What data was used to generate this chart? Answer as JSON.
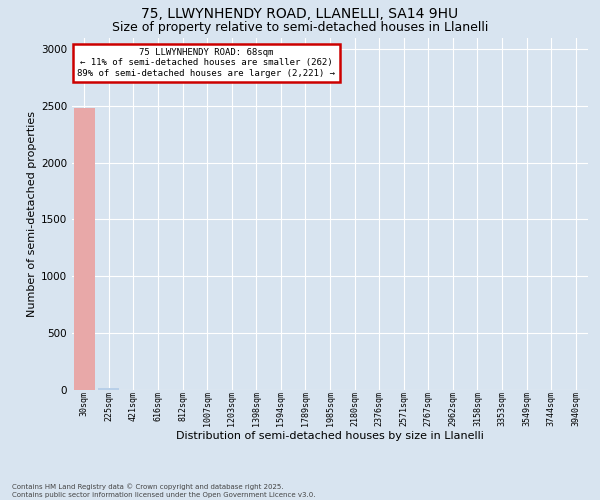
{
  "title_line1": "75, LLWYNHENDY ROAD, LLANELLI, SA14 9HU",
  "title_line2": "Size of property relative to semi-detached houses in Llanelli",
  "xlabel": "Distribution of semi-detached houses by size in Llanelli",
  "ylabel": "Number of semi-detached properties",
  "bar_labels": [
    "30sqm",
    "225sqm",
    "421sqm",
    "616sqm",
    "812sqm",
    "1007sqm",
    "1203sqm",
    "1398sqm",
    "1594sqm",
    "1789sqm",
    "1985sqm",
    "2180sqm",
    "2376sqm",
    "2571sqm",
    "2767sqm",
    "2962sqm",
    "3158sqm",
    "3353sqm",
    "3549sqm",
    "3744sqm",
    "3940sqm"
  ],
  "bar_heights": [
    2483,
    20,
    2,
    1,
    0,
    0,
    0,
    0,
    0,
    0,
    0,
    0,
    0,
    0,
    0,
    0,
    0,
    0,
    0,
    0,
    0
  ],
  "bar_color_default": "#b8cfe8",
  "bar_color_highlight": "#e8a8a8",
  "highlight_index": 0,
  "annotation_title": "75 LLWYNHENDY ROAD: 68sqm",
  "annotation_line2": "← 11% of semi-detached houses are smaller (262)",
  "annotation_line3": "89% of semi-detached houses are larger (2,221) →",
  "annotation_box_color": "#cc0000",
  "ylim": [
    0,
    3100
  ],
  "yticks": [
    0,
    500,
    1000,
    1500,
    2000,
    2500,
    3000
  ],
  "background_color": "#d8e4f0",
  "plot_background": "#d8e4f0",
  "footer_line1": "Contains HM Land Registry data © Crown copyright and database right 2025.",
  "footer_line2": "Contains public sector information licensed under the Open Government Licence v3.0.",
  "grid_color": "#ffffff",
  "title_fontsize": 10,
  "subtitle_fontsize": 9,
  "tick_fontsize": 6,
  "ylabel_fontsize": 8,
  "xlabel_fontsize": 8,
  "footer_fontsize": 5,
  "annotation_fontsize": 6.5
}
